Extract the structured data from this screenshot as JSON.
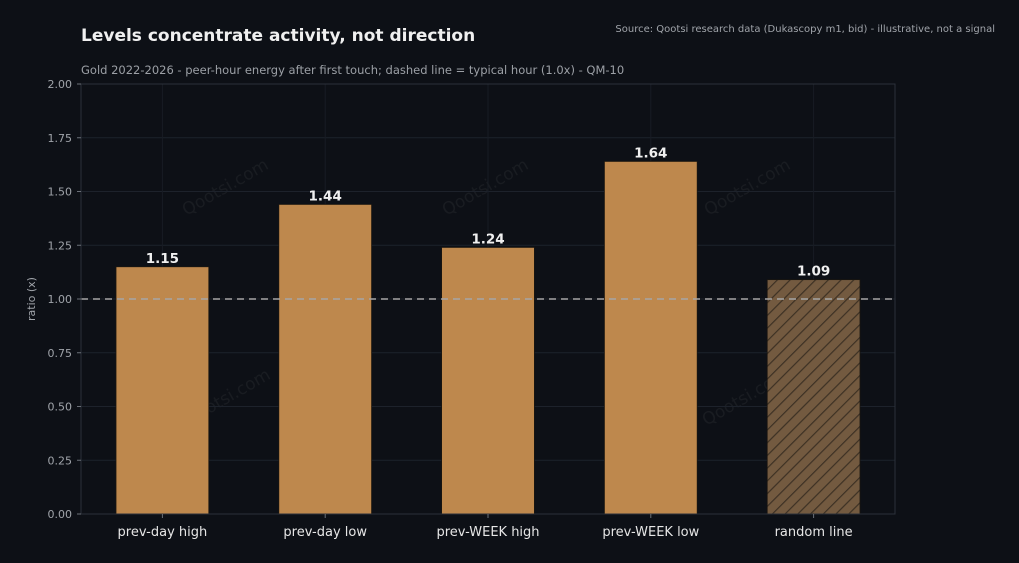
{
  "source": "Source: Qootsi research data (Dukascopy m1, bid) - illustrative, not a signal",
  "watermark": "Qootsi.com",
  "colors": {
    "background": "#0d1016",
    "bar": "#be884d",
    "bar_hatched": "#735a40",
    "hatch_line": "#3d3124",
    "reference_line": "#a6a6a6",
    "text": "#f0f0f0",
    "muted_text": "#a0a4aa"
  },
  "chart_data": {
    "type": "bar",
    "title": "Levels concentrate activity, not direction",
    "subtitle": "Gold 2022-2026 - peer-hour energy after first touch; dashed line = typical hour (1.0x) - QM-10",
    "xlabel": "",
    "ylabel": "ratio (x)",
    "categories": [
      "prev-day high",
      "prev-day low",
      "prev-WEEK high",
      "prev-WEEK low",
      "random line"
    ],
    "values": [
      1.15,
      1.44,
      1.24,
      1.64,
      1.09
    ],
    "value_labels": [
      "1.15",
      "1.44",
      "1.24",
      "1.64",
      "1.09"
    ],
    "hatched": [
      false,
      false,
      false,
      false,
      true
    ],
    "ylim": [
      0,
      2.0
    ],
    "yticks": [
      0,
      0.25,
      0.5,
      0.75,
      1.0,
      1.25,
      1.5,
      1.75,
      2.0
    ],
    "ytick_labels": [
      "0.00",
      "0.25",
      "0.50",
      "0.75",
      "1.00",
      "1.25",
      "1.50",
      "1.75",
      "2.00"
    ],
    "reference_line": 1.0,
    "grid": true,
    "legend": "none"
  }
}
